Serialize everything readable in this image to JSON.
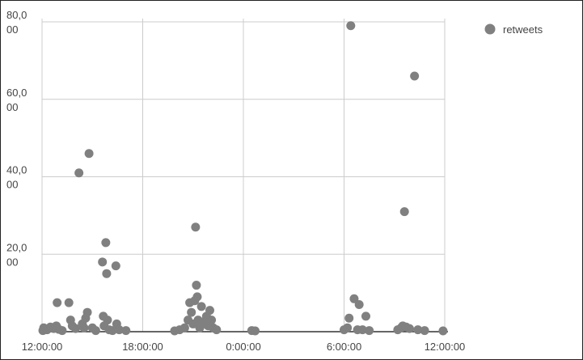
{
  "chart_data": {
    "type": "scatter",
    "title": "",
    "xlabel": "",
    "ylabel": "",
    "ylim": [
      0,
      80000
    ],
    "grid": true,
    "legend": {
      "position": "top-right",
      "entries": [
        "retweets"
      ]
    },
    "x_unit": "hours",
    "xlim": [
      12,
      36
    ],
    "x_ticks": [
      {
        "value": 12,
        "label": "12:00:00"
      },
      {
        "value": 18,
        "label": "18:00:00"
      },
      {
        "value": 24,
        "label": "0:00:00"
      },
      {
        "value": 30,
        "label": "6:00:00"
      },
      {
        "value": 36,
        "label": "12:00:00"
      }
    ],
    "y_ticks": [
      {
        "value": 0,
        "label": ""
      },
      {
        "value": 20000,
        "label": [
          "20,0",
          "00"
        ]
      },
      {
        "value": 40000,
        "label": [
          "40,0",
          "00"
        ]
      },
      {
        "value": 60000,
        "label": [
          "60,0",
          "00"
        ]
      },
      {
        "value": 80000,
        "label": [
          "80,0",
          "00"
        ]
      }
    ],
    "colors": {
      "marker": "#808080",
      "grid": "#cccccc",
      "axis": "#333333"
    },
    "series": [
      {
        "name": "retweets",
        "points": [
          [
            12.05,
            300
          ],
          [
            12.1,
            1000
          ],
          [
            12.3,
            500
          ],
          [
            12.5,
            1200
          ],
          [
            12.7,
            800
          ],
          [
            12.85,
            1500
          ],
          [
            12.9,
            7500
          ],
          [
            13.0,
            600
          ],
          [
            13.2,
            300
          ],
          [
            13.6,
            7500
          ],
          [
            13.7,
            3000
          ],
          [
            13.8,
            1500
          ],
          [
            14.0,
            800
          ],
          [
            14.2,
            41000
          ],
          [
            14.4,
            2000
          ],
          [
            14.5,
            1000
          ],
          [
            14.6,
            3500
          ],
          [
            14.7,
            5000
          ],
          [
            14.8,
            46000
          ],
          [
            15.0,
            1000
          ],
          [
            15.2,
            300
          ],
          [
            15.6,
            18000
          ],
          [
            15.65,
            4000
          ],
          [
            15.7,
            1500
          ],
          [
            15.8,
            23000
          ],
          [
            15.85,
            15000
          ],
          [
            15.9,
            3000
          ],
          [
            16.0,
            500
          ],
          [
            16.2,
            300
          ],
          [
            16.4,
            17000
          ],
          [
            16.45,
            2000
          ],
          [
            16.6,
            500
          ],
          [
            17.0,
            300
          ],
          [
            19.9,
            200
          ],
          [
            20.2,
            500
          ],
          [
            20.5,
            1000
          ],
          [
            20.7,
            3000
          ],
          [
            20.8,
            7500
          ],
          [
            20.9,
            5000
          ],
          [
            21.0,
            2000
          ],
          [
            21.1,
            8000
          ],
          [
            21.15,
            27000
          ],
          [
            21.2,
            12000
          ],
          [
            21.25,
            9000
          ],
          [
            21.3,
            3000
          ],
          [
            21.4,
            1000
          ],
          [
            21.5,
            6500
          ],
          [
            21.6,
            2500
          ],
          [
            21.8,
            4000
          ],
          [
            21.9,
            1500
          ],
          [
            22.0,
            5500
          ],
          [
            22.1,
            3000
          ],
          [
            22.2,
            1000
          ],
          [
            22.4,
            500
          ],
          [
            24.5,
            300
          ],
          [
            24.7,
            200
          ],
          [
            30.0,
            500
          ],
          [
            30.2,
            1000
          ],
          [
            30.3,
            3500
          ],
          [
            30.4,
            79000
          ],
          [
            30.6,
            8500
          ],
          [
            30.8,
            500
          ],
          [
            30.9,
            7000
          ],
          [
            31.1,
            500
          ],
          [
            31.3,
            4000
          ],
          [
            31.5,
            300
          ],
          [
            33.2,
            500
          ],
          [
            33.4,
            1000
          ],
          [
            33.5,
            1500
          ],
          [
            33.6,
            31000
          ],
          [
            33.7,
            1200
          ],
          [
            33.9,
            800
          ],
          [
            34.2,
            66000
          ],
          [
            34.4,
            500
          ],
          [
            34.8,
            300
          ],
          [
            35.9,
            200
          ]
        ]
      }
    ]
  }
}
